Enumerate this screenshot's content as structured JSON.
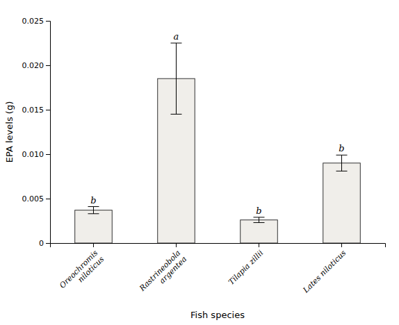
{
  "chart_data": {
    "type": "bar",
    "categories": [
      "Oreochromis\nniloticus",
      "Rastrineobola\nargentea",
      "Tilapia zillii",
      "Lates niloticus"
    ],
    "values": [
      0.0037,
      0.0185,
      0.0026,
      0.009
    ],
    "errors": [
      0.0004,
      0.004,
      0.0003,
      0.0009
    ],
    "annotations": [
      "b",
      "a",
      "b",
      "b"
    ],
    "color": "#f0eeea",
    "xlabel": "Fish species",
    "ylabel": "EPA levels (g)",
    "ylim": [
      0,
      0.025
    ],
    "yticks": [
      0,
      0.005,
      {
        "value": 0.01,
        "label": "0.010"
      },
      0.015,
      {
        "value": 0.02,
        "label": "0.020"
      },
      0.025
    ],
    "grid": false
  }
}
